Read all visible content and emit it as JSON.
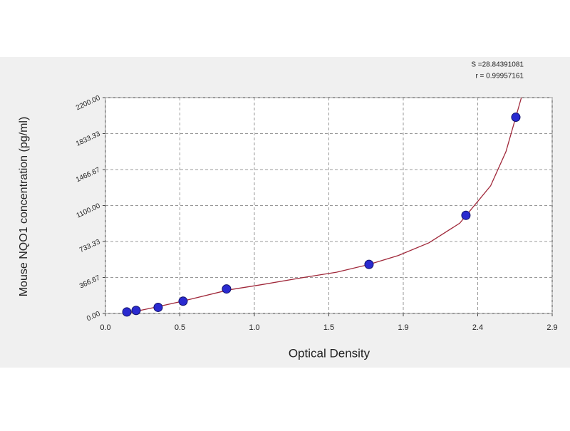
{
  "chart_data": {
    "type": "scatter",
    "xlabel": "Optical Density",
    "ylabel": "Mouse NQO1 concentration (pg/ml)",
    "annotations": [
      "S =28.84391081",
      "r = 0.99957161"
    ],
    "xlim": [
      0,
      2.9
    ],
    "ylim": [
      0,
      2200
    ],
    "xticks": [
      {
        "value": 0,
        "label": "0.0"
      },
      {
        "value": 0.4833,
        "label": "0.5"
      },
      {
        "value": 0.9667,
        "label": "1.0"
      },
      {
        "value": 1.45,
        "label": "1.5"
      },
      {
        "value": 1.9333,
        "label": "1.9"
      },
      {
        "value": 2.4167,
        "label": "2.4"
      },
      {
        "value": 2.9,
        "label": "2.9"
      }
    ],
    "yticks": [
      {
        "value": 0,
        "label": "0.00"
      },
      {
        "value": 366.67,
        "label": "366.67"
      },
      {
        "value": 733.33,
        "label": "733.33"
      },
      {
        "value": 1100,
        "label": "1100.00"
      },
      {
        "value": 1466.67,
        "label": "1466.67"
      },
      {
        "value": 1833.33,
        "label": "1833.33"
      },
      {
        "value": 2200,
        "label": "2200.00"
      }
    ],
    "grid": true,
    "series": [
      {
        "kind": "points",
        "color": "#2a2ad0",
        "x": [
          0.139,
          0.199,
          0.342,
          0.504,
          0.786,
          1.711,
          2.34,
          2.664
        ],
        "values": [
          15,
          31,
          62,
          125,
          250,
          500,
          1000,
          2000
        ]
      },
      {
        "kind": "curve",
        "color": "#a0283a",
        "x": [
          0.13,
          0.3,
          0.5,
          0.8,
          1.0,
          1.3,
          1.5,
          1.7,
          1.9,
          2.1,
          2.3,
          2.5,
          2.6,
          2.7
        ],
        "values": [
          0,
          55,
          125,
          240,
          290,
          370,
          420,
          495,
          590,
          720,
          920,
          1300,
          1650,
          2200
        ]
      }
    ]
  }
}
